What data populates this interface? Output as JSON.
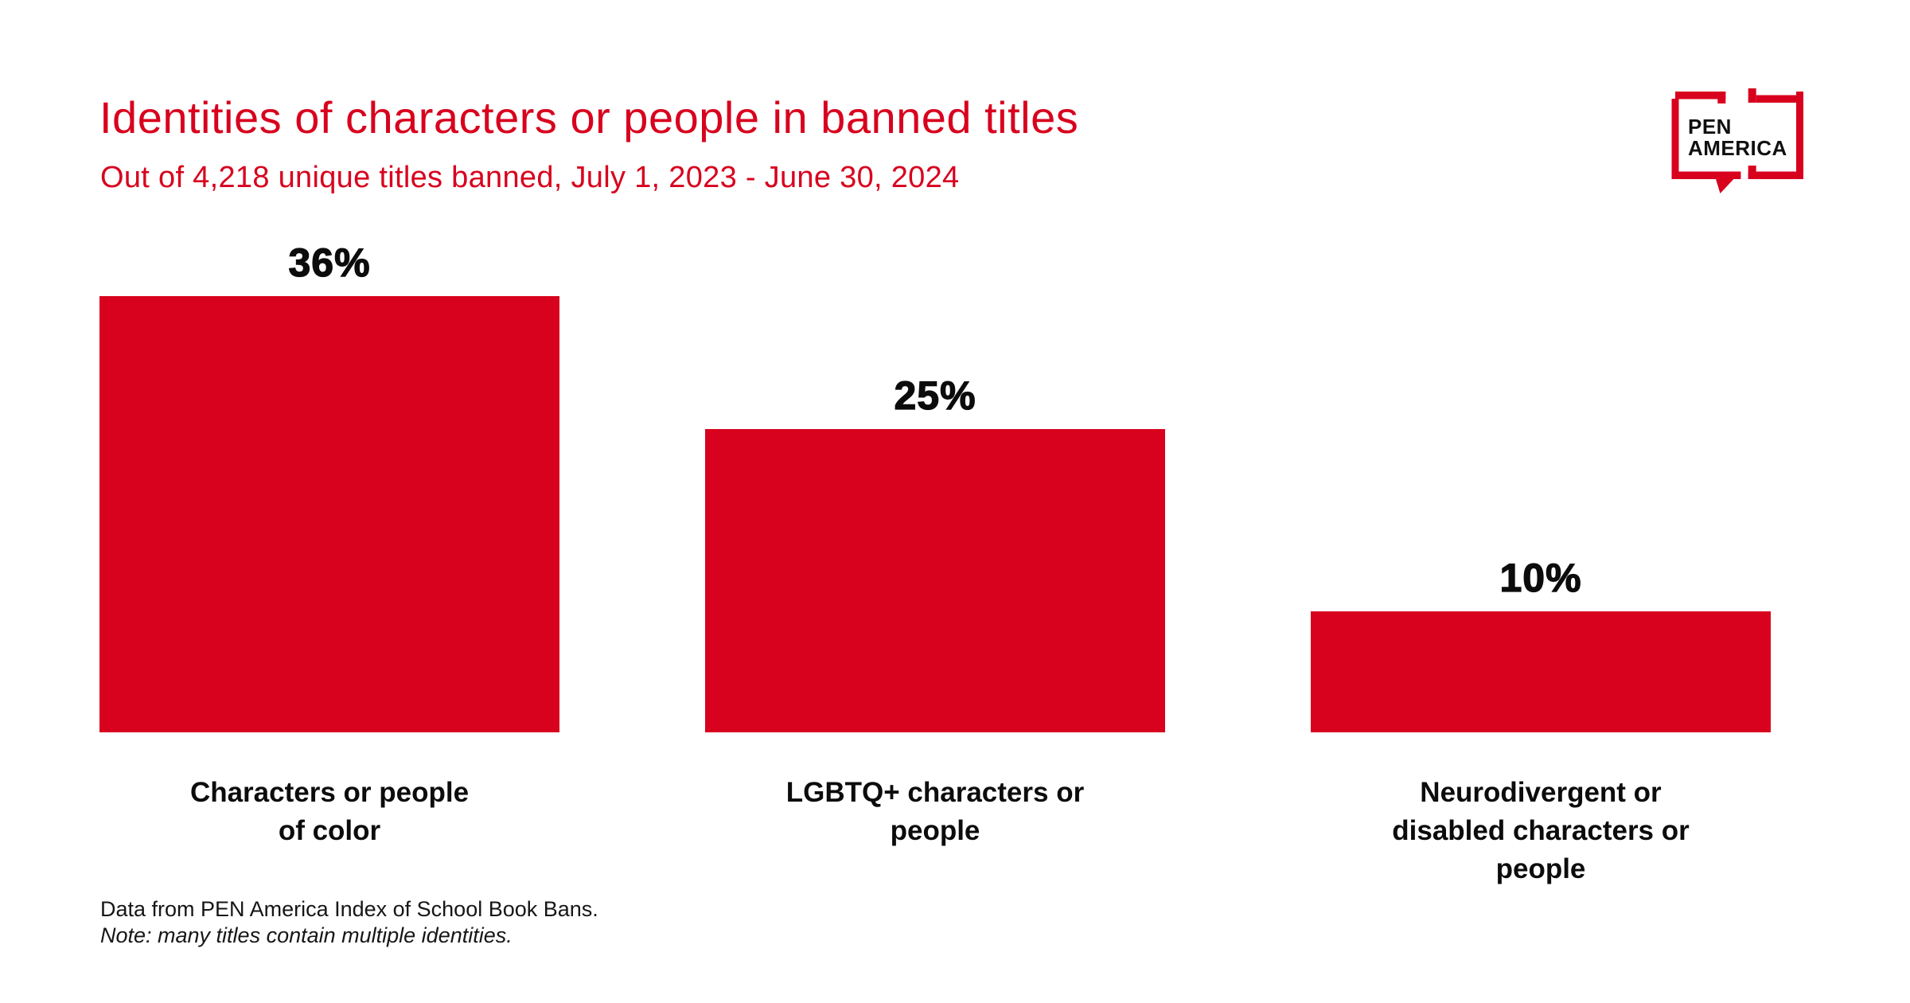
{
  "colors": {
    "red": "#D8021E",
    "text": "#0c0c0c"
  },
  "header": {
    "title": "Identities of characters or people in banned titles",
    "subtitle": "Out of 4,218 unique titles banned, July 1, 2023 - June 30, 2024"
  },
  "logo": {
    "line1": "PEN",
    "line2": "AMERICA"
  },
  "chart_data": {
    "type": "bar",
    "title": "Identities of characters or people in banned titles",
    "subtitle": "Out of 4,218 unique titles banned, July 1, 2023 - June 30, 2024",
    "categories": [
      "Characters or people of color",
      "LGBTQ+ characters or people",
      "Neurodivergent or disabled characters or people"
    ],
    "category_lines": [
      [
        "Characters or people",
        "of color"
      ],
      [
        "LGBTQ+ characters or",
        "people"
      ],
      [
        "Neurodivergent or",
        "disabled characters or",
        "people"
      ]
    ],
    "values": [
      36,
      25,
      10
    ],
    "value_labels": [
      "36%",
      "25%",
      "10%"
    ],
    "ylim": [
      0,
      36
    ],
    "bar_color": "#D8021E",
    "grid": false,
    "legend": false,
    "value_labels_position": "above-bars"
  },
  "footnote": {
    "line1": "Data from PEN America Index of School Book Bans.",
    "line2": "Note: many titles contain multiple identities."
  }
}
